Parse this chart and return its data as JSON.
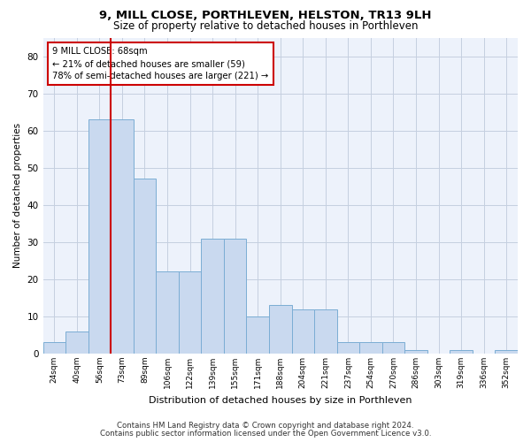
{
  "title": "9, MILL CLOSE, PORTHLEVEN, HELSTON, TR13 9LH",
  "subtitle": "Size of property relative to detached houses in Porthleven",
  "xlabel": "Distribution of detached houses by size in Porthleven",
  "ylabel": "Number of detached properties",
  "categories": [
    "24sqm",
    "40sqm",
    "56sqm",
    "73sqm",
    "89sqm",
    "106sqm",
    "122sqm",
    "139sqm",
    "155sqm",
    "171sqm",
    "188sqm",
    "204sqm",
    "221sqm",
    "237sqm",
    "254sqm",
    "270sqm",
    "286sqm",
    "303sqm",
    "319sqm",
    "336sqm",
    "352sqm"
  ],
  "values": [
    3,
    6,
    63,
    63,
    47,
    22,
    22,
    31,
    31,
    10,
    13,
    12,
    12,
    3,
    3,
    3,
    1,
    0,
    1,
    0,
    1
  ],
  "bar_color": "#c9d9ef",
  "bar_edge_color": "#7badd4",
  "vline_color": "#cc0000",
  "annotation_text": "9 MILL CLOSE: 68sqm\n← 21% of detached houses are smaller (59)\n78% of semi-detached houses are larger (221) →",
  "annotation_box_color": "#ffffff",
  "annotation_box_edge": "#cc0000",
  "ylim": [
    0,
    85
  ],
  "yticks": [
    0,
    10,
    20,
    30,
    40,
    50,
    60,
    70,
    80
  ],
  "footer1": "Contains HM Land Registry data © Crown copyright and database right 2024.",
  "footer2": "Contains public sector information licensed under the Open Government Licence v3.0.",
  "bg_color": "#edf2fb",
  "fig_bg": "#ffffff",
  "grid_color": "#c5cfe0"
}
